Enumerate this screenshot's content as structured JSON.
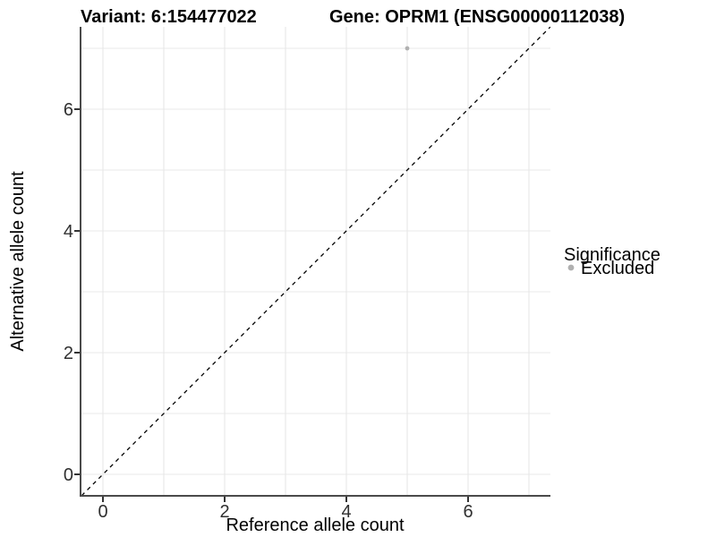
{
  "figure": {
    "title_variant": "Variant: 6:154477022",
    "title_gene": "Gene: OPRM1 (ENSG00000112038)"
  },
  "axes": {
    "x_label": "Reference allele count",
    "y_label": "Alternative allele count"
  },
  "legend": {
    "title": "Significance",
    "items": [
      {
        "label": "Excluded",
        "color": "#b0b0b0"
      }
    ]
  },
  "colors": {
    "background": "#ffffff",
    "grid": "#e8e8e8",
    "axis_line": "#4a4a4a",
    "tick_mark": "#333333",
    "tick_text": "#303030",
    "point": "#b0b0b0",
    "reference_line": "#000000"
  },
  "chart_data": {
    "type": "scatter",
    "title": "Variant: 6:154477022    Gene: OPRM1 (ENSG00000112038)",
    "xlabel": "Reference allele count",
    "ylabel": "Alternative allele count",
    "xlim": [
      -0.35,
      7.35
    ],
    "ylim": [
      -0.35,
      7.35
    ],
    "x_ticks": [
      0,
      2,
      4,
      6
    ],
    "y_ticks": [
      0,
      2,
      4,
      6
    ],
    "grid_x": [
      0,
      1,
      2,
      3,
      4,
      5,
      6,
      7
    ],
    "grid_y": [
      0,
      1,
      2,
      3,
      4,
      5,
      6,
      7
    ],
    "grid": true,
    "legend_position": "right",
    "legend_title": "Significance",
    "series": [
      {
        "name": "Excluded",
        "color": "#b0b0b0",
        "points": [
          {
            "x": 5,
            "y": 7
          }
        ]
      }
    ],
    "reference_line": {
      "type": "identity y=x",
      "style": "dashed",
      "x": [
        -0.35,
        7.35
      ],
      "y": [
        -0.35,
        7.35
      ]
    }
  }
}
